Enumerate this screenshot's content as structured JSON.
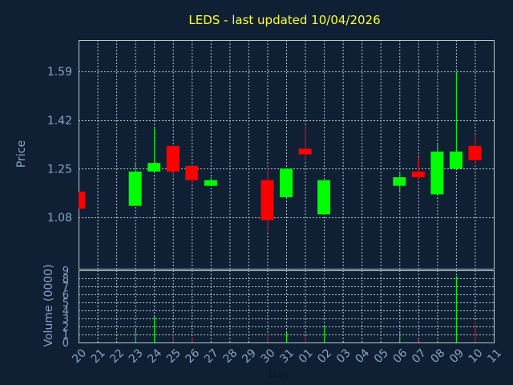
{
  "chart_data": {
    "type": "candlestick",
    "title": "LEDS - last updated 10/04/2026",
    "xlabel": "Day",
    "ylabel": "Price",
    "volume_label": "Volume (0000)",
    "colors": {
      "background": "#0f2035",
      "grid": "#b8c4d2",
      "up": "#00ff00",
      "down": "#ff0000",
      "title": "#ffff33",
      "text": "#8aa2c0"
    },
    "grid": true,
    "price_axis": {
      "min": 0.9,
      "max": 1.7,
      "ticks": [
        1.08,
        1.25,
        1.42,
        1.59
      ],
      "tick_labels": [
        "1.08",
        "1.25",
        "1.42",
        "1.59"
      ]
    },
    "volume_axis": {
      "min": 0,
      "max": 9,
      "ticks": [
        0,
        1,
        2,
        3,
        4,
        5,
        6,
        7,
        8,
        9
      ],
      "tick_labels": [
        "0",
        "1",
        "2",
        "3",
        "4",
        "5",
        "6",
        "7",
        "8",
        "9"
      ]
    },
    "x_labels": [
      "20",
      "21",
      "22",
      "23",
      "24",
      "25",
      "26",
      "27",
      "28",
      "29",
      "30",
      "31",
      "01",
      "02",
      "03",
      "04",
      "05",
      "06",
      "07",
      "08",
      "09",
      "10",
      "11"
    ],
    "candles": [
      {
        "day": "20",
        "open": 1.17,
        "high": 1.17,
        "low": 1.11,
        "close": 1.11,
        "volume": 0.0
      },
      {
        "day": "23",
        "open": 1.12,
        "high": 1.27,
        "low": 1.12,
        "close": 1.24,
        "volume": 1.7
      },
      {
        "day": "24",
        "open": 1.24,
        "high": 1.39,
        "low": 1.24,
        "close": 1.27,
        "volume": 3.2
      },
      {
        "day": "25",
        "open": 1.33,
        "high": 1.33,
        "low": 1.22,
        "close": 1.24,
        "volume": 1.0
      },
      {
        "day": "26",
        "open": 1.26,
        "high": 1.26,
        "low": 1.2,
        "close": 1.21,
        "volume": 0.6
      },
      {
        "day": "27",
        "open": 1.19,
        "high": 1.22,
        "low": 1.19,
        "close": 1.21,
        "volume": 0.2
      },
      {
        "day": "30",
        "open": 1.21,
        "high": 1.26,
        "low": 1.03,
        "close": 1.07,
        "volume": 1.0
      },
      {
        "day": "31",
        "open": 1.15,
        "high": 1.25,
        "low": 1.15,
        "close": 1.25,
        "volume": 1.2
      },
      {
        "day": "01",
        "open": 1.32,
        "high": 1.4,
        "low": 1.28,
        "close": 1.3,
        "volume": 0.8
      },
      {
        "day": "02",
        "open": 1.09,
        "high": 1.21,
        "low": 1.09,
        "close": 1.21,
        "volume": 2.1
      },
      {
        "day": "06",
        "open": 1.19,
        "high": 1.24,
        "low": 1.17,
        "close": 1.22,
        "volume": 1.3
      },
      {
        "day": "07",
        "open": 1.24,
        "high": 1.29,
        "low": 1.21,
        "close": 1.22,
        "volume": 0.3
      },
      {
        "day": "08",
        "open": 1.16,
        "high": 1.34,
        "low": 1.16,
        "close": 1.31,
        "volume": 0.2
      },
      {
        "day": "09",
        "open": 1.25,
        "high": 1.59,
        "low": 1.25,
        "close": 1.31,
        "volume": 8.3
      },
      {
        "day": "10",
        "open": 1.33,
        "high": 1.37,
        "low": 1.26,
        "close": 1.28,
        "volume": 2.6
      }
    ]
  }
}
